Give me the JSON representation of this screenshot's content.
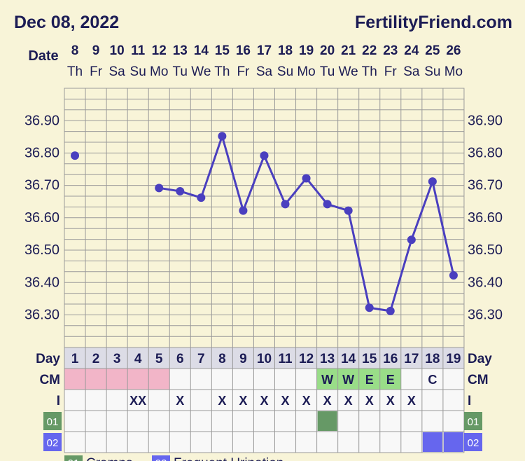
{
  "header": {
    "date": "Dec 08, 2022",
    "site": "FertilityFriend.com"
  },
  "labels": {
    "date": "Date",
    "day": "Day",
    "cm": "CM",
    "intercourse": "I",
    "code1": "01",
    "code2": "02"
  },
  "legend": [
    {
      "code": "01",
      "label": "Cramps",
      "color": "#669966"
    },
    {
      "code": "02",
      "label": "Frequent Urination",
      "color": "#6666ee"
    }
  ],
  "colors": {
    "line": "#4a3fbf",
    "period": "#f2b5c8",
    "fertile_cm": "#99dd88",
    "code1": "#669966",
    "code2": "#6666ee",
    "grid": "#9a9a9a",
    "day_cell": "#dcdce6"
  },
  "chart_data": {
    "type": "line",
    "title": "",
    "ylim": [
      36.2,
      37.0
    ],
    "y_ticks": [
      "36.90",
      "36.80",
      "36.70",
      "36.60",
      "36.50",
      "36.40",
      "36.30"
    ],
    "dates": [
      "8",
      "9",
      "10",
      "11",
      "12",
      "13",
      "14",
      "15",
      "16",
      "17",
      "18",
      "19",
      "20",
      "21",
      "22",
      "23",
      "24",
      "25",
      "26"
    ],
    "weekdays": [
      "Th",
      "Fr",
      "Sa",
      "Su",
      "Mo",
      "Tu",
      "We",
      "Th",
      "Fr",
      "Sa",
      "Su",
      "Mo",
      "Tu",
      "We",
      "Th",
      "Fr",
      "Sa",
      "Su",
      "Mo"
    ],
    "cycle_days": [
      "1",
      "2",
      "3",
      "4",
      "5",
      "6",
      "7",
      "8",
      "9",
      "10",
      "11",
      "12",
      "13",
      "14",
      "15",
      "16",
      "17",
      "18",
      "19"
    ],
    "temperatures": [
      36.79,
      null,
      null,
      null,
      36.69,
      36.68,
      36.66,
      36.85,
      36.62,
      36.79,
      36.64,
      36.72,
      36.64,
      36.62,
      36.32,
      36.31,
      36.53,
      36.71,
      36.42
    ],
    "cm": [
      "",
      "",
      "",
      "",
      "",
      "",
      "",
      "",
      "",
      "",
      "",
      "",
      "W",
      "W",
      "E",
      "E",
      "",
      "C",
      ""
    ],
    "period_days": [
      1,
      2,
      3,
      4,
      5
    ],
    "intercourse": [
      "",
      "",
      "",
      "XX",
      "",
      "X",
      "",
      "X",
      "X",
      "X",
      "X",
      "X",
      "X",
      "X",
      "X",
      "X",
      "X",
      "",
      ""
    ],
    "code1_days": [
      13
    ],
    "code2_days": [
      18,
      19
    ]
  }
}
